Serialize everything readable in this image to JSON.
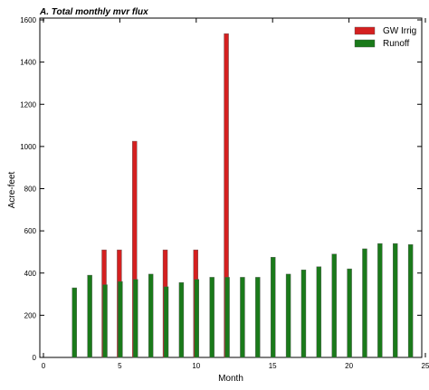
{
  "chart_data": {
    "type": "bar",
    "title": "A. Total monthly mvr flux",
    "xlabel": "Month",
    "ylabel": "Acre-feet",
    "xlim": [
      0,
      25
    ],
    "ylim": [
      0,
      1600
    ],
    "xticks": [
      0,
      5,
      10,
      15,
      20,
      25
    ],
    "yticks": [
      0,
      200,
      400,
      600,
      800,
      1000,
      1200,
      1400,
      1600
    ],
    "legend_position": "top-right",
    "grid": false,
    "series": [
      {
        "name": "GW Irrig",
        "color": "#d42020",
        "points": [
          {
            "x": 4,
            "y": 510
          },
          {
            "x": 5,
            "y": 510
          },
          {
            "x": 6,
            "y": 1025
          },
          {
            "x": 8,
            "y": 510
          },
          {
            "x": 10,
            "y": 510
          },
          {
            "x": 12,
            "y": 1535
          }
        ]
      },
      {
        "name": "Runoff",
        "color": "#1a7a1a",
        "points": [
          {
            "x": 2,
            "y": 330
          },
          {
            "x": 3,
            "y": 390
          },
          {
            "x": 4,
            "y": 345
          },
          {
            "x": 5,
            "y": 360
          },
          {
            "x": 6,
            "y": 370
          },
          {
            "x": 7,
            "y": 395
          },
          {
            "x": 8,
            "y": 335
          },
          {
            "x": 9,
            "y": 355
          },
          {
            "x": 10,
            "y": 370
          },
          {
            "x": 11,
            "y": 380
          },
          {
            "x": 12,
            "y": 380
          },
          {
            "x": 13,
            "y": 380
          },
          {
            "x": 14,
            "y": 380
          },
          {
            "x": 15,
            "y": 475
          },
          {
            "x": 16,
            "y": 395
          },
          {
            "x": 17,
            "y": 415
          },
          {
            "x": 18,
            "y": 430
          },
          {
            "x": 19,
            "y": 490
          },
          {
            "x": 20,
            "y": 420
          },
          {
            "x": 21,
            "y": 515
          },
          {
            "x": 22,
            "y": 540
          },
          {
            "x": 23,
            "y": 540
          },
          {
            "x": 24,
            "y": 535
          }
        ]
      }
    ]
  }
}
